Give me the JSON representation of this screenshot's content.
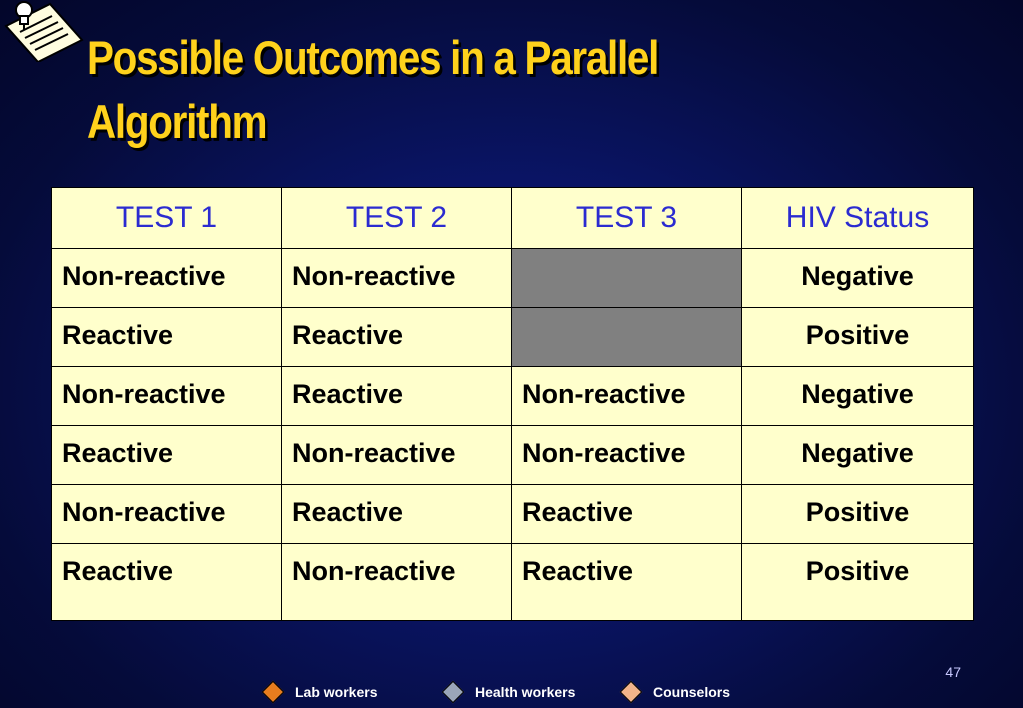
{
  "slide": {
    "title": "Possible Outcomes in a Parallel Algorithm",
    "page_number": "47"
  },
  "table": {
    "headers": [
      "TEST 1",
      "TEST 2",
      "TEST 3",
      "HIV Status"
    ],
    "rows": [
      {
        "test1": "Non-reactive",
        "test2": "Non-reactive",
        "test3": "",
        "status": "Negative",
        "test3_not_done": true
      },
      {
        "test1": "Reactive",
        "test2": "Reactive",
        "test3": "",
        "status": "Positive",
        "test3_not_done": true
      },
      {
        "test1": "Non-reactive",
        "test2": "Reactive",
        "test3": "Non-reactive",
        "status": "Negative"
      },
      {
        "test1": "Reactive",
        "test2": "Non-reactive",
        "test3": "Non-reactive",
        "status": "Negative"
      },
      {
        "test1": "Non-reactive",
        "test2": "Reactive",
        "test3": "Reactive",
        "status": "Positive"
      },
      {
        "test1": "Reactive",
        "test2": "Non-reactive",
        "test3": "Reactive",
        "status": "Positive"
      }
    ],
    "colors": {
      "cell_background": "#ffffcc",
      "header_text": "#2b2bd0",
      "not_done_cell": "#808080"
    }
  },
  "legend": [
    {
      "label": "Lab workers",
      "icon": "orange-diamond-icon",
      "color": "#e87d1e"
    },
    {
      "label": "Health workers",
      "icon": "gray-diamond-icon",
      "color": "#9aa6b8"
    },
    {
      "label": "Counselors",
      "icon": "peach-diamond-icon",
      "color": "#f2b48a"
    }
  ],
  "colors": {
    "title": "#ffd21c",
    "background": "#0a1568"
  }
}
